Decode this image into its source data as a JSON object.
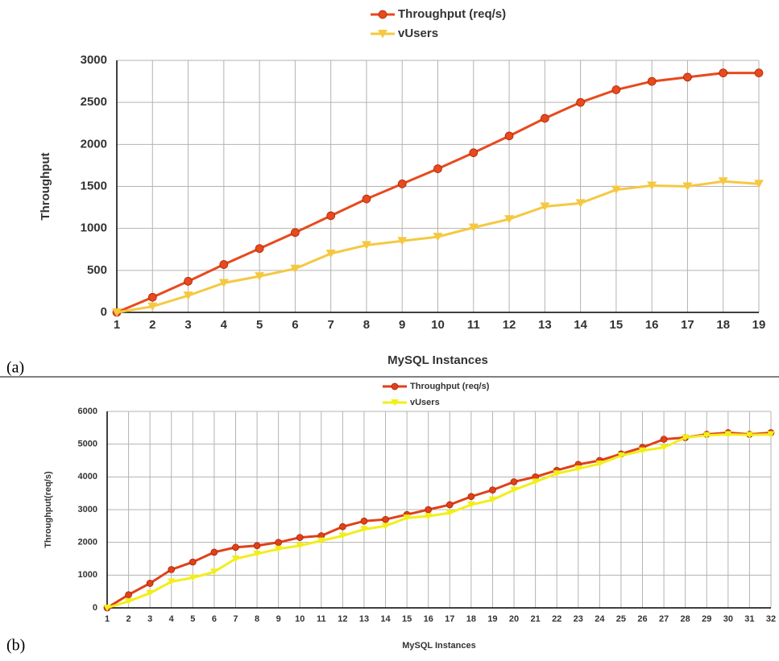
{
  "chart_data": [
    {
      "type": "line",
      "panel_label": "(a)",
      "x_label": "MySQL Instances",
      "y_label": "Throughput",
      "x": [
        1,
        2,
        3,
        4,
        5,
        6,
        7,
        8,
        9,
        10,
        11,
        12,
        13,
        14,
        15,
        16,
        17,
        18,
        19
      ],
      "xlim": [
        1,
        19
      ],
      "xticks": [
        1,
        2,
        3,
        4,
        5,
        6,
        7,
        8,
        9,
        10,
        11,
        12,
        13,
        14,
        15,
        16,
        17,
        18,
        19
      ],
      "ylim": [
        0,
        3000
      ],
      "yticks": [
        0,
        500,
        1000,
        1500,
        2000,
        2500,
        3000
      ],
      "grid": true,
      "series": [
        {
          "name": "Throughput (req/s)",
          "color": "#e8491d",
          "marker": "circle",
          "values": [
            0,
            180,
            370,
            570,
            760,
            950,
            1150,
            1350,
            1530,
            1710,
            1900,
            2100,
            2310,
            2500,
            2650,
            2750,
            2800,
            2850,
            2850
          ]
        },
        {
          "name": "vUsers",
          "color": "#f5c842",
          "marker": "triangle",
          "values": [
            0,
            70,
            200,
            350,
            430,
            520,
            700,
            800,
            850,
            900,
            1010,
            1110,
            1260,
            1300,
            1460,
            1510,
            1500,
            1560,
            1530
          ]
        }
      ]
    },
    {
      "type": "line",
      "panel_label": "(b)",
      "x_label": "MySQL Instances",
      "y_label": "Throughput(req/s)",
      "x": [
        1,
        2,
        3,
        4,
        5,
        6,
        7,
        8,
        9,
        10,
        11,
        12,
        13,
        14,
        15,
        16,
        17,
        18,
        19,
        20,
        21,
        22,
        23,
        24,
        25,
        26,
        27,
        28,
        29,
        30,
        31,
        32
      ],
      "xlim": [
        1,
        32
      ],
      "xticks": [
        1,
        2,
        3,
        4,
        5,
        6,
        7,
        8,
        9,
        10,
        11,
        12,
        13,
        14,
        15,
        16,
        17,
        18,
        19,
        20,
        21,
        22,
        23,
        24,
        25,
        26,
        27,
        28,
        29,
        30,
        31,
        32
      ],
      "ylim": [
        0,
        6000
      ],
      "yticks": [
        0,
        1000,
        2000,
        3000,
        4000,
        5000,
        6000
      ],
      "grid": true,
      "series": [
        {
          "name": "Throughput (req/s)",
          "color": "#e0401a",
          "marker": "circle",
          "values": [
            0,
            400,
            750,
            1170,
            1400,
            1700,
            1850,
            1900,
            2000,
            2150,
            2200,
            2480,
            2650,
            2700,
            2850,
            3000,
            3150,
            3400,
            3600,
            3850,
            4000,
            4200,
            4380,
            4500,
            4700,
            4900,
            5150,
            5200,
            5300,
            5350,
            5300,
            5350
          ]
        },
        {
          "name": "vUsers",
          "color": "#f2ee1a",
          "marker": "triangle",
          "values": [
            0,
            200,
            450,
            800,
            920,
            1100,
            1500,
            1650,
            1800,
            1900,
            2050,
            2200,
            2400,
            2500,
            2750,
            2800,
            2900,
            3150,
            3300,
            3600,
            3850,
            4100,
            4250,
            4400,
            4650,
            4800,
            4900,
            5200,
            5270,
            5300,
            5280,
            5300
          ]
        }
      ]
    }
  ]
}
